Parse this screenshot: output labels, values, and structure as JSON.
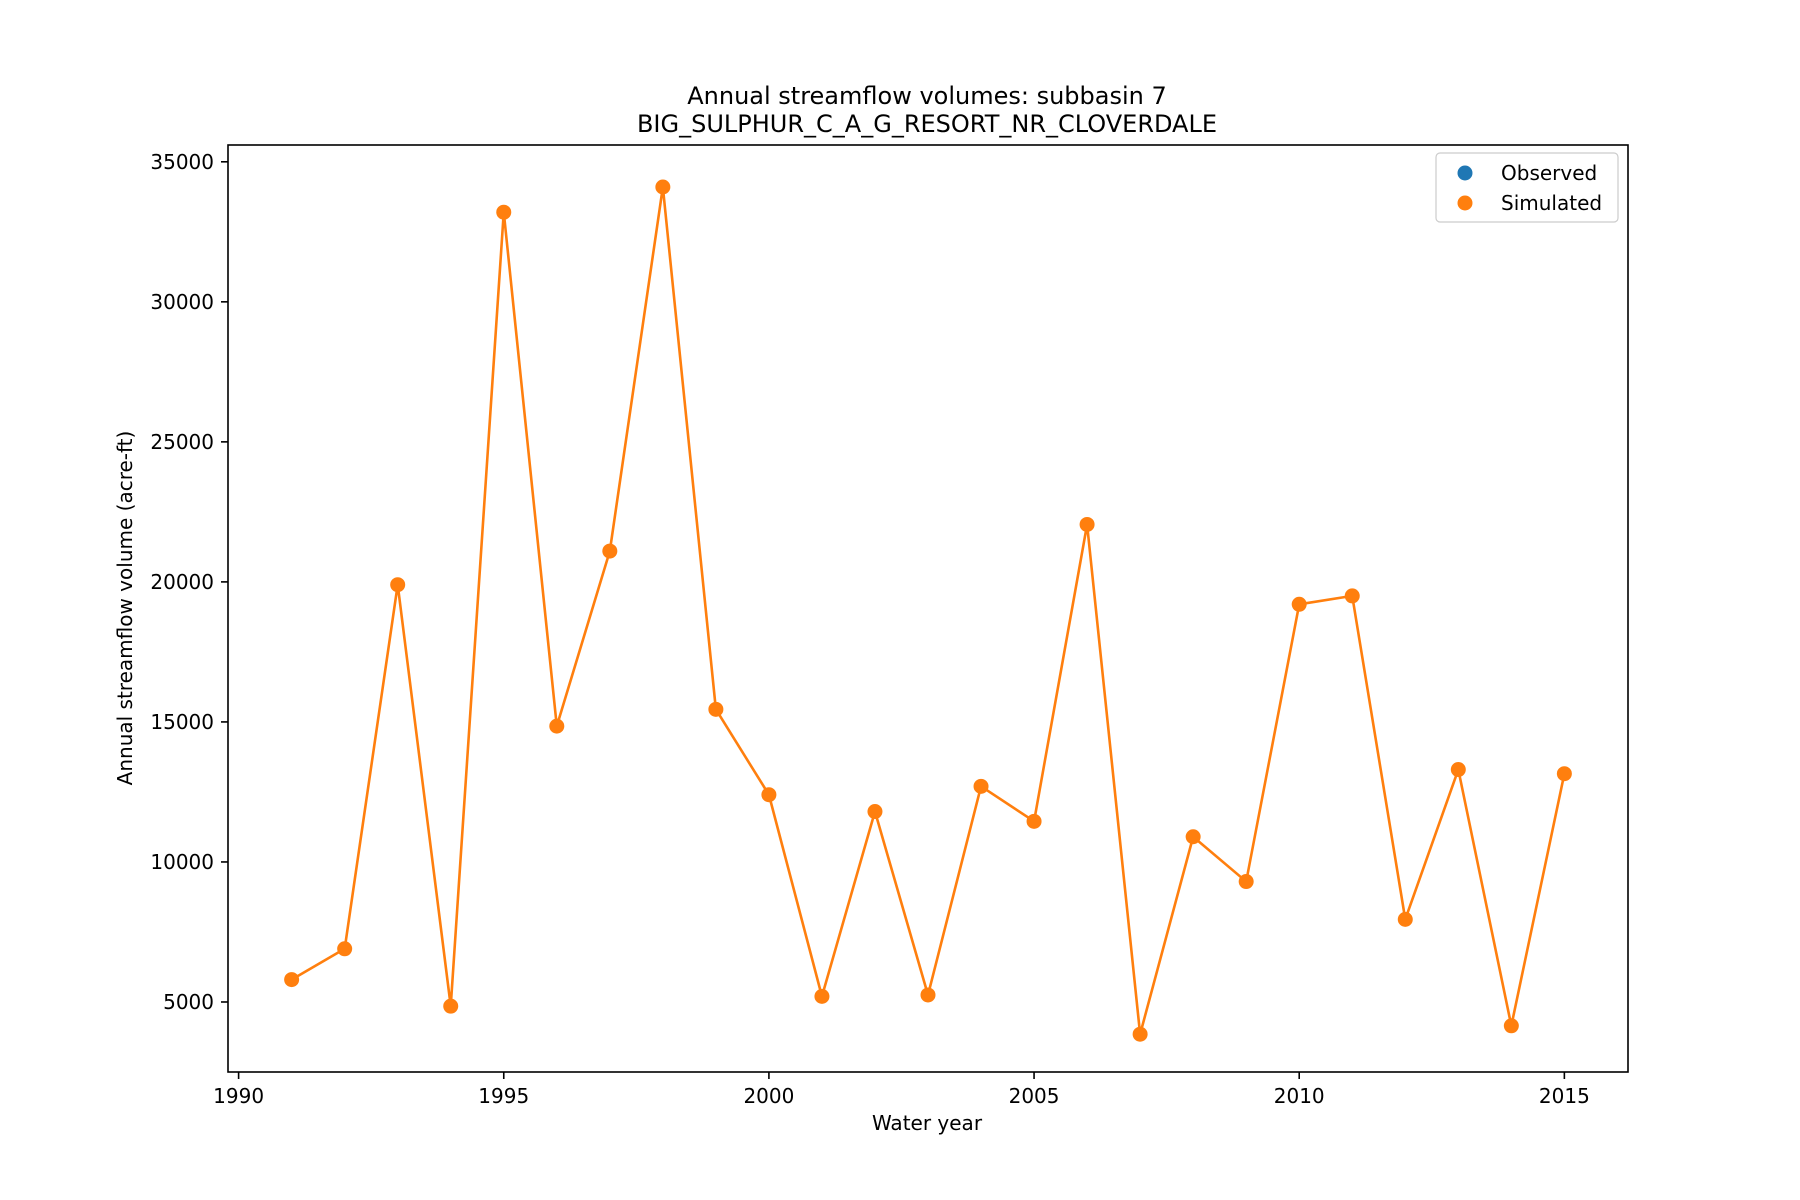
{
  "chart_data": {
    "type": "line",
    "title": "Annual streamflow volumes: subbasin 7",
    "subtitle": "BIG_SULPHUR_C_A_G_RESORT_NR_CLOVERDALE",
    "xlabel": "Water year",
    "ylabel": "Annual streamflow volume (acre-ft)",
    "xlim": [
      1989.8,
      2016.2
    ],
    "ylim": [
      2500,
      35600
    ],
    "xticks": [
      1990,
      1995,
      2000,
      2005,
      2010,
      2015
    ],
    "yticks": [
      5000,
      10000,
      15000,
      20000,
      25000,
      30000,
      35000
    ],
    "grid": false,
    "legend_position": "top-right",
    "legend": [
      {
        "label": "Observed",
        "color": "#1f77b4"
      },
      {
        "label": "Simulated",
        "color": "#ff7f0e"
      }
    ],
    "series": [
      {
        "name": "Observed",
        "color": "#1f77b4",
        "x": [],
        "y": []
      },
      {
        "name": "Simulated",
        "color": "#ff7f0e",
        "x": [
          1991,
          1992,
          1993,
          1994,
          1995,
          1996,
          1997,
          1998,
          1999,
          2000,
          2001,
          2002,
          2003,
          2004,
          2005,
          2006,
          2007,
          2008,
          2009,
          2010,
          2011,
          2012,
          2013,
          2014,
          2015
        ],
        "y": [
          5800,
          6900,
          19900,
          4850,
          33200,
          14850,
          21100,
          34100,
          15450,
          12400,
          5200,
          11800,
          5250,
          12700,
          11450,
          22050,
          3850,
          10900,
          9300,
          19200,
          19500,
          7950,
          13300,
          4150,
          13150
        ]
      }
    ]
  }
}
